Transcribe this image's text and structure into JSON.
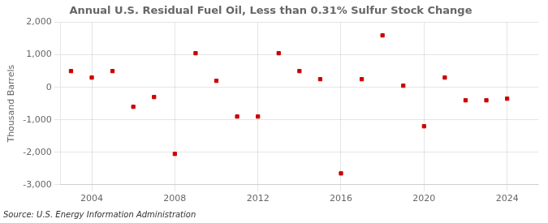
{
  "chart_data": {
    "type": "scatter",
    "title": "Annual U.S. Residual Fuel Oil, Less than 0.31% Sulfur Stock Change",
    "ylabel": "Thousand Barrels",
    "annotations": [
      "Source: U.S. Energy Information Administration"
    ],
    "x": [
      2003,
      2004,
      2005,
      2006,
      2007,
      2008,
      2009,
      2010,
      2011,
      2012,
      2013,
      2014,
      2015,
      2016,
      2017,
      2018,
      2019,
      2020,
      2021,
      2022,
      2023,
      2024
    ],
    "values": [
      500,
      300,
      500,
      -600,
      -300,
      -2050,
      1050,
      200,
      -900,
      -900,
      1050,
      500,
      250,
      -2650,
      250,
      1600,
      50,
      -1200,
      300,
      -400,
      -400,
      -350
    ],
    "color": "#cc0000",
    "marker": "square",
    "xlim": [
      2002.5,
      2025.5
    ],
    "xticks": [
      2004,
      2008,
      2012,
      2016,
      2020,
      2024
    ],
    "ylim": [
      -3000,
      2000
    ],
    "yticks": [
      {
        "value": -3000,
        "label": "-3,000"
      },
      {
        "value": -2000,
        "label": "-2,000"
      },
      {
        "value": -1000,
        "label": "-1,000"
      },
      0,
      {
        "value": 1000,
        "label": "1,000"
      },
      {
        "value": 2000,
        "label": "2,000"
      }
    ],
    "grid": true
  }
}
